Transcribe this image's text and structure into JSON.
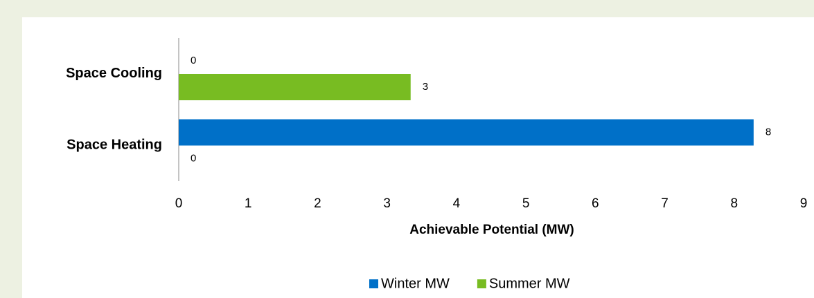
{
  "chart_data": {
    "type": "barh",
    "categories": [
      "Space Cooling",
      "Space Heating"
    ],
    "series": [
      {
        "name": "Winter MW",
        "color": "#0070c8",
        "values": [
          0,
          8.28
        ],
        "value_labels": [
          "0",
          "8"
        ]
      },
      {
        "name": "Summer MW",
        "color": "#78bc22",
        "values": [
          3.34,
          0
        ],
        "value_labels": [
          "3",
          "0"
        ]
      }
    ],
    "xlabel": "Achievable Potential (MW)",
    "xlim": [
      0,
      9
    ],
    "xticks": [
      0,
      1,
      2,
      3,
      4,
      5,
      6,
      7,
      8,
      9
    ],
    "grid": false,
    "legend": "bottom"
  }
}
